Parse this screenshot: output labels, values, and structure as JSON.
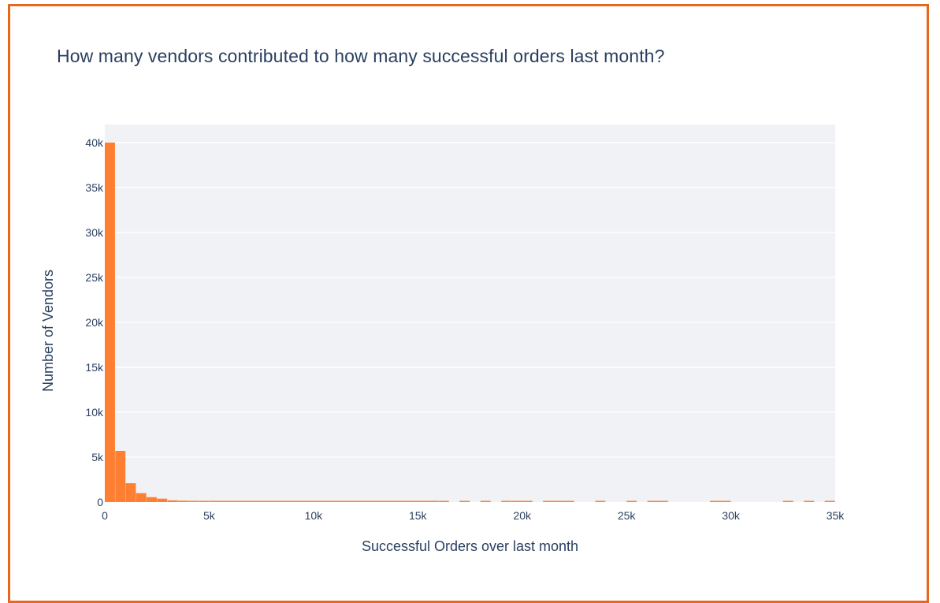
{
  "chart_data": {
    "type": "bar",
    "title": "How many vendors contributed to how many successful orders last month?",
    "xlabel": "Successful Orders over last month",
    "ylabel": "Number of Vendors",
    "xlim": [
      0,
      35000
    ],
    "ylim": [
      0,
      42000
    ],
    "grid": true,
    "bar_color": "#ff7f32",
    "plot_bg": "#f0f2f6",
    "bin_width": 500,
    "x_ticks": [
      {
        "value": 0,
        "label": "0"
      },
      {
        "value": 5000,
        "label": "5k"
      },
      {
        "value": 10000,
        "label": "10k"
      },
      {
        "value": 15000,
        "label": "15k"
      },
      {
        "value": 20000,
        "label": "20k"
      },
      {
        "value": 25000,
        "label": "25k"
      },
      {
        "value": 30000,
        "label": "30k"
      },
      {
        "value": 35000,
        "label": "35k"
      }
    ],
    "y_ticks": [
      {
        "value": 0,
        "label": "0"
      },
      {
        "value": 5000,
        "label": "5k"
      },
      {
        "value": 10000,
        "label": "10k"
      },
      {
        "value": 15000,
        "label": "15k"
      },
      {
        "value": 20000,
        "label": "20k"
      },
      {
        "value": 25000,
        "label": "25k"
      },
      {
        "value": 30000,
        "label": "30k"
      },
      {
        "value": 35000,
        "label": "35k"
      },
      {
        "value": 40000,
        "label": "40k"
      }
    ],
    "bins": [
      {
        "x0": 0,
        "x1": 500,
        "count": 40000
      },
      {
        "x0": 500,
        "x1": 1000,
        "count": 5700
      },
      {
        "x0": 1000,
        "x1": 1500,
        "count": 2100
      },
      {
        "x0": 1500,
        "x1": 2000,
        "count": 1000
      },
      {
        "x0": 2000,
        "x1": 2500,
        "count": 550
      },
      {
        "x0": 2500,
        "x1": 3000,
        "count": 380
      },
      {
        "x0": 3000,
        "x1": 3500,
        "count": 200
      },
      {
        "x0": 3500,
        "x1": 4000,
        "count": 160
      },
      {
        "x0": 4000,
        "x1": 4500,
        "count": 120
      },
      {
        "x0": 4500,
        "x1": 5000,
        "count": 90
      },
      {
        "x0": 5000,
        "x1": 16000,
        "count": 40
      },
      {
        "x0": 16000,
        "x1": 16500,
        "count": 10
      },
      {
        "x0": 17000,
        "x1": 17500,
        "count": 10
      },
      {
        "x0": 18000,
        "x1": 18500,
        "count": 10
      },
      {
        "x0": 19000,
        "x1": 19500,
        "count": 10
      },
      {
        "x0": 19500,
        "x1": 20500,
        "count": 10
      },
      {
        "x0": 21000,
        "x1": 22500,
        "count": 10
      },
      {
        "x0": 23500,
        "x1": 24000,
        "count": 10
      },
      {
        "x0": 25000,
        "x1": 25500,
        "count": 10
      },
      {
        "x0": 26000,
        "x1": 27000,
        "count": 10
      },
      {
        "x0": 29000,
        "x1": 30000,
        "count": 10
      },
      {
        "x0": 32500,
        "x1": 33000,
        "count": 10
      },
      {
        "x0": 33500,
        "x1": 34000,
        "count": 10
      },
      {
        "x0": 34500,
        "x1": 35000,
        "count": 10
      }
    ]
  }
}
